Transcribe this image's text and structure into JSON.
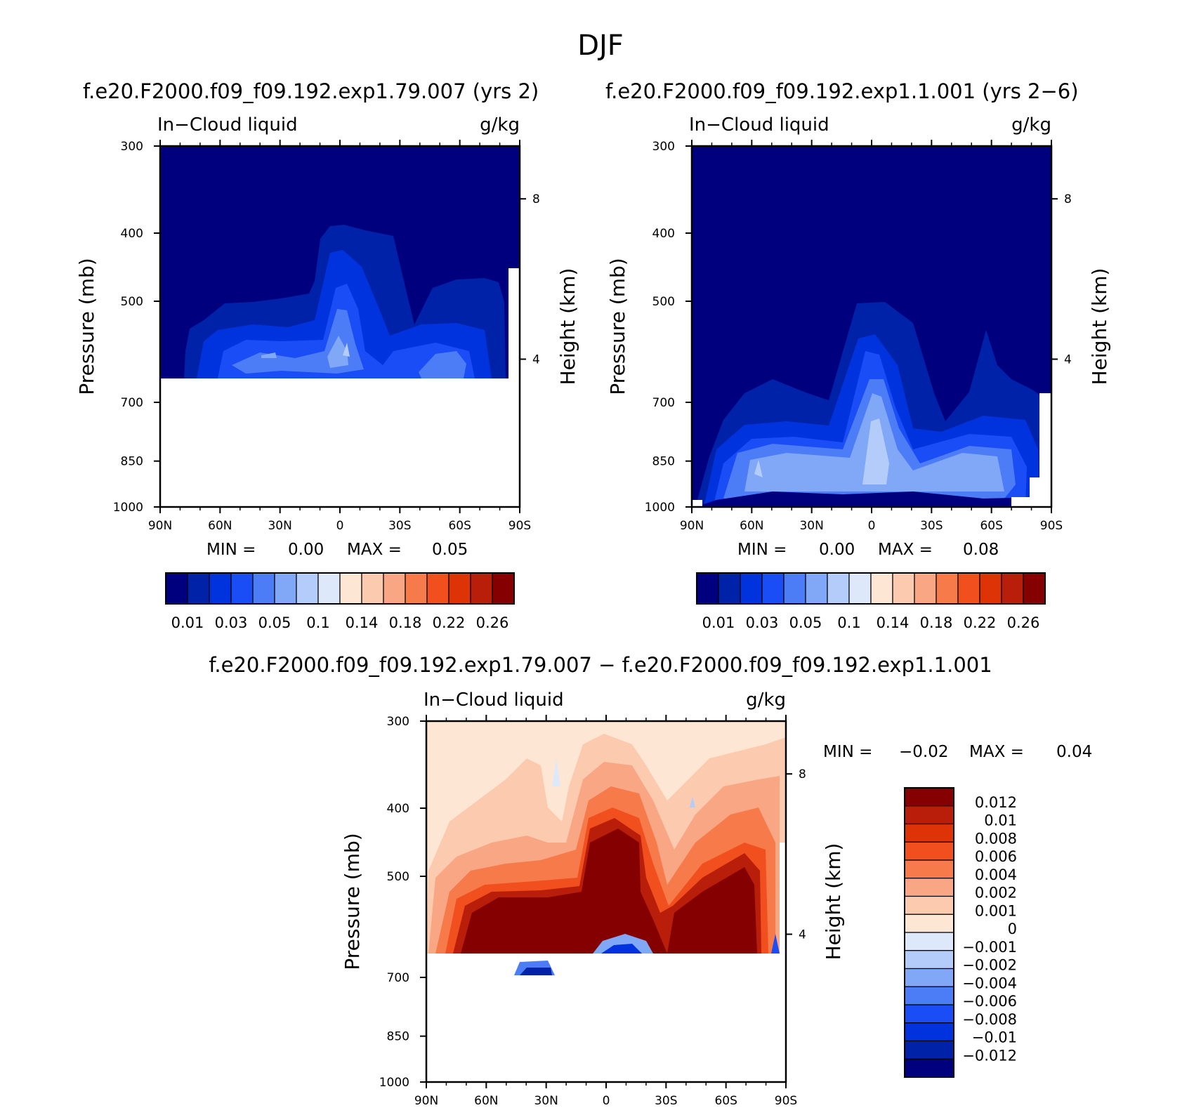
{
  "figure": {
    "title": "DJF",
    "run_titles": {
      "left": "f.e20.F2000.f09_f09.192.exp1.79.007 (yrs 2)",
      "right": "f.e20.F2000.f09_f09.192.exp1.1.001 (yrs 2−6)",
      "difference": "f.e20.F2000.f09_f09.192.exp1.79.007 − f.e20.F2000.f09_f09.192.exp1.1.001"
    }
  },
  "chart_data": [
    {
      "id": "left",
      "type": "contour",
      "variable": "In−Cloud liquid",
      "units": "g/kg",
      "xlabel": "",
      "ylabel": "Pressure (mb)",
      "ylabel_right": "Height (km)",
      "x_ticks": [
        "90N",
        "60N",
        "30N",
        "0",
        "30S",
        "60S",
        "90S"
      ],
      "x_range": [
        -90,
        90
      ],
      "y_ticks": [
        300,
        400,
        500,
        700,
        850,
        1000
      ],
      "y_range": [
        300,
        1000
      ],
      "y_right_ticks": [
        8,
        4
      ],
      "min_label": "MIN =",
      "min_value": "0.00",
      "max_label": "MAX =",
      "max_value": "0.05",
      "levels": [
        "0.01",
        "0.03",
        "0.05",
        "0.1",
        "0.14",
        "0.18",
        "0.22",
        "0.26"
      ],
      "colors": [
        "#00007f",
        "#0022a8",
        "#0033dd",
        "#1a4df5",
        "#4c7df7",
        "#80a8f7",
        "#b3ccfa",
        "#dde9fb",
        "#fde7d4",
        "#fccbaf",
        "#f9a685",
        "#f77a4b",
        "#f24f1f",
        "#de3207",
        "#b81e0a",
        "#850000"
      ],
      "field_peak": {
        "lat": 2,
        "pressure": 560,
        "value": 0.05
      }
    },
    {
      "id": "right",
      "type": "contour",
      "variable": "In−Cloud liquid",
      "units": "g/kg",
      "xlabel": "",
      "ylabel": "Pressure (mb)",
      "ylabel_right": "Height (km)",
      "x_ticks": [
        "90N",
        "60N",
        "30N",
        "0",
        "30S",
        "60S",
        "90S"
      ],
      "x_range": [
        -90,
        90
      ],
      "y_ticks": [
        300,
        400,
        500,
        700,
        850,
        1000
      ],
      "y_range": [
        300,
        1000
      ],
      "y_right_ticks": [
        8,
        4
      ],
      "min_label": "MIN =",
      "min_value": "0.00",
      "max_label": "MAX =",
      "max_value": "0.08",
      "levels": [
        "0.01",
        "0.03",
        "0.05",
        "0.1",
        "0.14",
        "0.18",
        "0.22",
        "0.26"
      ],
      "colors": [
        "#00007f",
        "#0022a8",
        "#0033dd",
        "#1a4df5",
        "#4c7df7",
        "#80a8f7",
        "#b3ccfa",
        "#dde9fb",
        "#fde7d4",
        "#fccbaf",
        "#f9a685",
        "#f77a4b",
        "#f24f1f",
        "#de3207",
        "#b81e0a",
        "#850000"
      ],
      "field_peak": {
        "lat": 0,
        "pressure": 800,
        "value": 0.08
      }
    },
    {
      "id": "difference",
      "type": "contour",
      "variable": "In−Cloud liquid",
      "units": "g/kg",
      "xlabel": "",
      "ylabel": "Pressure (mb)",
      "ylabel_right": "Height (km)",
      "x_ticks": [
        "90N",
        "60N",
        "30N",
        "0",
        "30S",
        "60S",
        "90S"
      ],
      "x_range": [
        -90,
        90
      ],
      "y_ticks": [
        300,
        400,
        500,
        700,
        850,
        1000
      ],
      "y_range": [
        300,
        1000
      ],
      "y_right_ticks": [
        8,
        4
      ],
      "min_label": "MIN =",
      "min_value": "−0.02",
      "max_label": "MAX =",
      "max_value": "0.04",
      "levels": [
        "0.012",
        "0.01",
        "0.008",
        "0.006",
        "0.004",
        "0.002",
        "0.001",
        "0",
        "−0.001",
        "−0.002",
        "−0.004",
        "−0.006",
        "−0.008",
        "−0.01",
        "−0.012"
      ],
      "colors": [
        "#850000",
        "#b81e0a",
        "#de3207",
        "#f24f1f",
        "#f77a4b",
        "#f9a685",
        "#fccbaf",
        "#fde7d4",
        "#dde9fb",
        "#b3ccfa",
        "#80a8f7",
        "#4c7df7",
        "#1a4df5",
        "#0033dd",
        "#0022a8",
        "#00007f"
      ]
    }
  ]
}
